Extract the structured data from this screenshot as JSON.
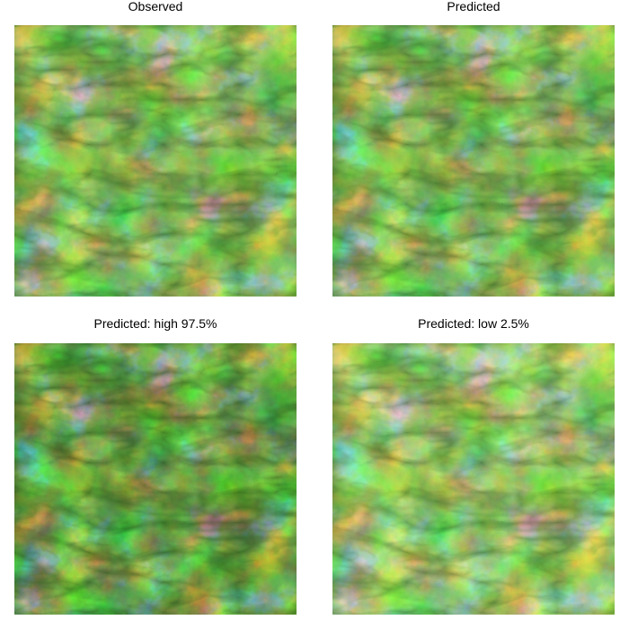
{
  "panels": [
    {
      "title": "Observed",
      "variant": "base"
    },
    {
      "title": "Predicted",
      "variant": "base"
    },
    {
      "title": "Predicted: high 97.5%",
      "variant": "dark"
    },
    {
      "title": "Predicted: low 2.5%",
      "variant": "light"
    }
  ],
  "colors": {
    "background": "#ffffff",
    "map_dark": "#0d2a05",
    "map_mid": "#3f8c1c",
    "map_light": "#7fd14a",
    "map_pale": "#d8f0b0",
    "map_pink": "#e8b4a6"
  }
}
